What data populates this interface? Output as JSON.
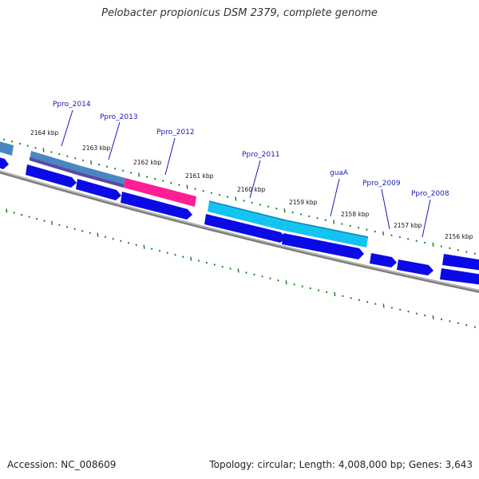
{
  "title": "Pelobacter propionicus DSM 2379, complete genome",
  "footer": {
    "accession": "Accession: NC_008609",
    "summary": "Topology: circular; Length: 4,008,000 bp; Genes: 3,643"
  },
  "colors": {
    "ruler_ticks": "#1a7a1a",
    "backbone": "#808080",
    "cds_arrow": "#0a0ae6",
    "gene_steelblue": "#4a86c0",
    "gene_slate": "#5c4a9c",
    "gene_pink": "#ff1e96",
    "gene_cyan": "#14c4f0",
    "label_text": "#1a1ab4"
  },
  "ruler_labels": [
    "2164 kbp",
    "2163 kbp",
    "2162 kbp",
    "2161 kbp",
    "2160 kbp",
    "2159 kbp",
    "2158 kbp",
    "2157 kbp",
    "2156 kbp"
  ],
  "gene_labels": [
    "Ppro_2014",
    "Ppro_2013",
    "Ppro_2012",
    "Ppro_2011",
    "guaA",
    "Ppro_2009",
    "Ppro_2008"
  ]
}
